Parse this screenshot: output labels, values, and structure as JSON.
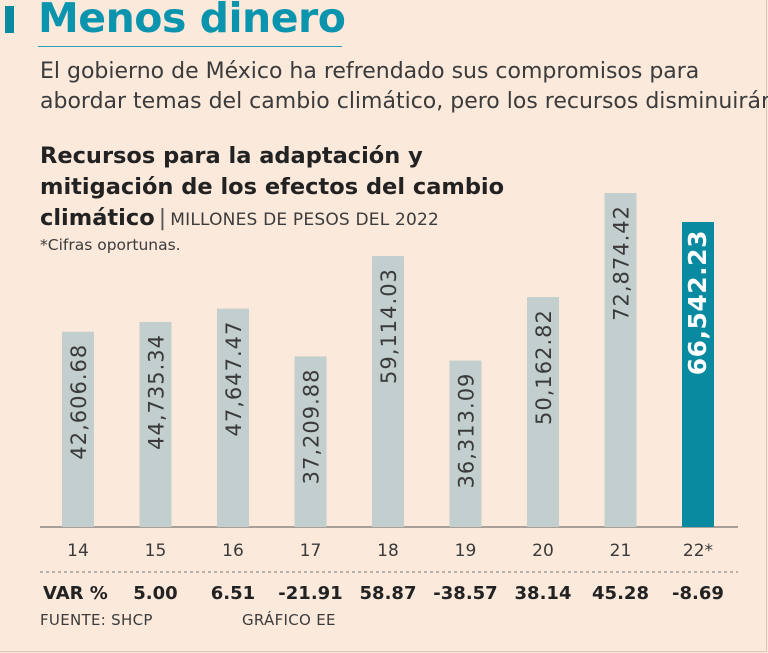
{
  "headline": "Menos dinero",
  "deck": [
    "El gobierno de México ha refrendado sus compromisos para",
    "abordar temas del cambio climático, pero los recursos disminuirán"
  ],
  "title_lines": [
    "Recursos para la adaptación y",
    "mitigación de los efectos del cambio",
    "climático"
  ],
  "units": "MILLONES DE PESOS DEL 2022",
  "note": "*Cifras oportunas.",
  "source": "FUENTE: SHCP",
  "credit": "GRÁFICO EE",
  "colors": {
    "accent": "#0a94ae",
    "bar": "#c3cfcf",
    "highlight_bar": "#0a8aa0",
    "label_text": "#3a3a3a",
    "background": "#fbe9dc"
  },
  "chart_data": {
    "type": "bar",
    "title": "Recursos para la adaptación y mitigación de los efectos del cambio climático",
    "ylabel": "MILLONES DE PESOS DEL 2022",
    "categories": [
      "14",
      "15",
      "16",
      "17",
      "18",
      "19",
      "20",
      "21",
      "22*"
    ],
    "values": [
      42606.68,
      44735.34,
      47647.47,
      37209.88,
      59114.03,
      36313.09,
      50162.82,
      72874.42,
      66542.23
    ],
    "value_labels": [
      "42,606.68",
      "44,735.34",
      "47,647.47",
      "37,209.88",
      "59,114.03",
      "36,313.09",
      "50,162.82",
      "72,874.42",
      "66,542.23"
    ],
    "highlight_index": 8,
    "ylim": [
      0,
      72874.42
    ],
    "var_label": "VAR %",
    "var_values": [
      "5.00",
      "6.51",
      "-21.91",
      "58.87",
      "-38.57",
      "38.14",
      "45.28",
      "-8.69"
    ]
  }
}
